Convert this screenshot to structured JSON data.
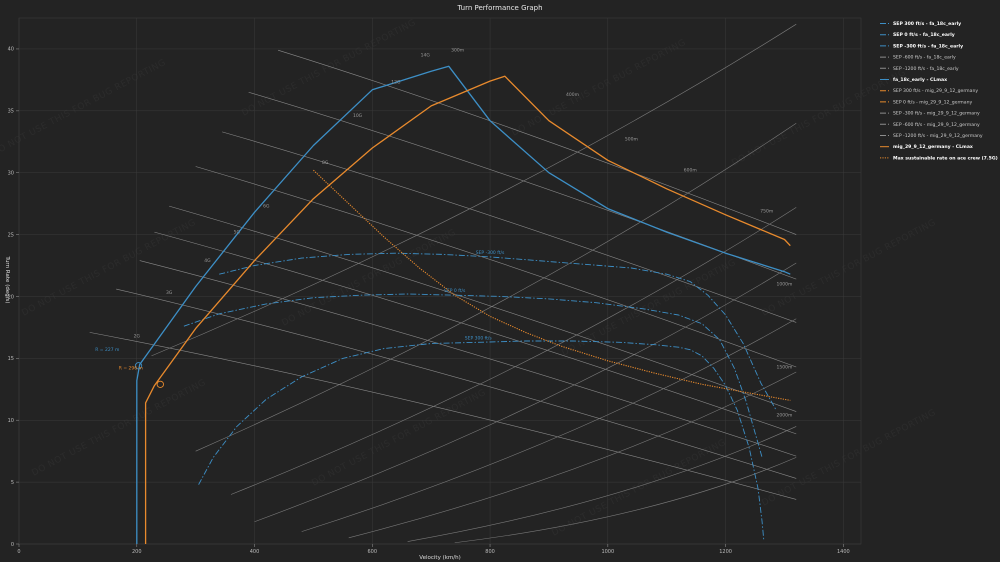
{
  "chart_data": {
    "type": "line",
    "title": "Turn Performance Graph",
    "xlabel": "Velocity (km/h)",
    "ylabel": "Turn Rate (deg/s)",
    "xlim": [
      0,
      1430
    ],
    "ylim": [
      0,
      42.5
    ],
    "xticks": [
      0,
      200,
      400,
      600,
      800,
      1000,
      1200,
      1400
    ],
    "yticks": [
      0,
      5,
      10,
      15,
      20,
      25,
      30,
      35,
      40
    ],
    "grid": true,
    "legend_position": "right",
    "watermark": "DO NOT USE THIS FOR BUG REPORTING",
    "series": [
      {
        "name": "SEP 300 ft/s - fa_18c_early",
        "color": "#3d8fc6",
        "style": "dashdot",
        "label": "SEP 300 ft/s",
        "x": [
          305,
          330,
          370,
          420,
          480,
          550,
          620,
          700,
          780,
          860,
          940,
          1020,
          1080,
          1120,
          1140,
          1160,
          1180,
          1200,
          1220,
          1240,
          1255,
          1262,
          1265
        ],
        "y": [
          4.8,
          7.0,
          9.5,
          11.7,
          13.5,
          15.0,
          15.8,
          16.2,
          16.3,
          16.4,
          16.4,
          16.3,
          16.1,
          15.9,
          15.7,
          15.2,
          14.2,
          12.8,
          10.8,
          7.8,
          4.5,
          1.8,
          0.3
        ]
      },
      {
        "name": "SEP 0 ft/s - fa_18c_early",
        "color": "#3d8fc6",
        "style": "dashdot",
        "label": "SEP 0 ft/s",
        "x": [
          280,
          340,
          420,
          500,
          580,
          660,
          740,
          820,
          900,
          980,
          1060,
          1120,
          1160,
          1190,
          1215,
          1235,
          1250,
          1262
        ],
        "y": [
          17.6,
          18.6,
          19.4,
          19.9,
          20.1,
          20.2,
          20.1,
          20.0,
          19.8,
          19.5,
          19.0,
          18.5,
          17.8,
          16.5,
          14.2,
          11.5,
          9.0,
          7.0
        ]
      },
      {
        "name": "SEP -300 ft/s - fa_18c_early",
        "color": "#3d8fc6",
        "style": "dashdot",
        "label": "SEP -300 ft/s",
        "x": [
          340,
          400,
          480,
          560,
          640,
          720,
          800,
          880,
          960,
          1040,
          1100,
          1140,
          1170,
          1200,
          1230,
          1260,
          1285
        ],
        "y": [
          21.8,
          22.5,
          23.1,
          23.4,
          23.5,
          23.4,
          23.2,
          22.9,
          22.6,
          22.3,
          21.8,
          21.2,
          20.1,
          18.5,
          16.2,
          13.0,
          10.9
        ]
      },
      {
        "name": "SEP -600 ft/s - fa_18c_early",
        "color": "#8d8d8d",
        "style": "dashdot"
      },
      {
        "name": "SEP -1200 ft/s - fa_18c_early",
        "color": "#8d8d8d",
        "style": "dashdot"
      },
      {
        "name": "fa_18c_early - CLmax",
        "color": "#3d8fc6",
        "style": "solid",
        "x": [
          200,
          200,
          205,
          300,
          400,
          500,
          600,
          700,
          730,
          800,
          900,
          1000,
          1100,
          1200,
          1300,
          1310
        ],
        "y": [
          0,
          13.2,
          14.5,
          20.8,
          26.8,
          32.2,
          36.7,
          38.2,
          38.6,
          34.2,
          30.0,
          27.1,
          25.2,
          23.5,
          22.0,
          21.8
        ]
      },
      {
        "name": "SEP 300 ft/s - mig_29_9_12_germany",
        "color": "#e88a2d",
        "style": "dashdot"
      },
      {
        "name": "SEP 0 ft/s - mig_29_9_12_germany",
        "color": "#e88a2d",
        "style": "dashdot"
      },
      {
        "name": "SEP -300 ft/s - mig_29_9_12_germany",
        "color": "#8d8d8d",
        "style": "dashdot"
      },
      {
        "name": "SEP -600 ft/s - mig_29_9_12_germany",
        "color": "#8d8d8d",
        "style": "dashdot"
      },
      {
        "name": "SEP -1200 ft/s - mig_29_9_12_germany",
        "color": "#8d8d8d",
        "style": "dashdot"
      },
      {
        "name": "mig_29_9_12_germany - CLmax",
        "color": "#e88a2d",
        "style": "solid",
        "x": [
          215,
          215,
          230,
          300,
          400,
          500,
          600,
          700,
          800,
          825,
          900,
          1000,
          1100,
          1200,
          1300,
          1310
        ],
        "y": [
          0,
          11.4,
          12.8,
          17.4,
          22.9,
          27.9,
          32.0,
          35.4,
          37.4,
          37.8,
          34.2,
          31.0,
          28.7,
          26.6,
          24.6,
          24.1
        ]
      },
      {
        "name": "Max sustainable rate on ace crew (7.5G)",
        "color": "#e88a2d",
        "style": "dotted",
        "x": [
          500,
          560,
          620,
          680,
          740,
          800,
          860,
          920,
          1000,
          1080,
          1160,
          1240,
          1310
        ],
        "y": [
          30.2,
          27.5,
          24.8,
          22.3,
          20.1,
          18.4,
          17.1,
          16.0,
          14.8,
          13.8,
          12.9,
          12.2,
          11.6
        ]
      }
    ],
    "g_lines": [
      {
        "label": "14G",
        "x": [
          440,
          1320
        ],
        "y": [
          39.9,
          25.0
        ]
      },
      {
        "label": "12G",
        "x": [
          390,
          1320
        ],
        "y": [
          36.5,
          21.4
        ]
      },
      {
        "label": "10G",
        "x": [
          345,
          1320
        ],
        "y": [
          33.3,
          17.9
        ]
      },
      {
        "label": "8G",
        "x": [
          300,
          1320
        ],
        "y": [
          30.5,
          14.3
        ]
      },
      {
        "label": "6G",
        "x": [
          255,
          1320
        ],
        "y": [
          27.3,
          10.7
        ]
      },
      {
        "label": "5G",
        "x": [
          230,
          1320
        ],
        "y": [
          25.2,
          8.9
        ]
      },
      {
        "label": "4G",
        "x": [
          205,
          1320
        ],
        "y": [
          22.9,
          7.1
        ]
      },
      {
        "label": "3G",
        "x": [
          165,
          1320
        ],
        "y": [
          20.6,
          5.3
        ]
      },
      {
        "label": "2G",
        "x": [
          120,
          1320
        ],
        "y": [
          17.1,
          3.6
        ]
      }
    ],
    "radius_lines": [
      {
        "label": "300m",
        "x": [
          225,
          1320
        ],
        "y": [
          15.2,
          42.0
        ]
      },
      {
        "label": "400m",
        "x": [
          300,
          1320
        ],
        "y": [
          7.5,
          34.0
        ]
      },
      {
        "label": "500m",
        "x": [
          360,
          1320
        ],
        "y": [
          4.0,
          27.2
        ]
      },
      {
        "label": "600m",
        "x": [
          400,
          1320
        ],
        "y": [
          1.8,
          22.7
        ]
      },
      {
        "label": "750m",
        "x": [
          480,
          1320
        ],
        "y": [
          1.0,
          18.2
        ]
      },
      {
        "label": "1000m",
        "x": [
          560,
          1320
        ],
        "y": [
          0.5,
          13.9
        ]
      },
      {
        "label": "1500m",
        "x": [
          660,
          1320
        ],
        "y": [
          0.2,
          9.5
        ]
      },
      {
        "label": "2000m",
        "x": [
          740,
          1320
        ],
        "y": [
          0.1,
          7.0
        ]
      }
    ],
    "annotations": [
      {
        "text": "R = 227 m",
        "x": 150,
        "y": 15.6,
        "color": "#3d8fc6"
      },
      {
        "text": "R = 296 m",
        "x": 190,
        "y": 14.1,
        "color": "#e88a2d"
      },
      {
        "text": "14G",
        "x": 690,
        "y": 39.4,
        "color": "#999"
      },
      {
        "text": "12G",
        "x": 640,
        "y": 37.2,
        "color": "#999"
      },
      {
        "text": "10G",
        "x": 575,
        "y": 34.5,
        "color": "#999"
      },
      {
        "text": "8G",
        "x": 520,
        "y": 30.7,
        "color": "#999"
      },
      {
        "text": "6G",
        "x": 420,
        "y": 27.2,
        "color": "#999"
      },
      {
        "text": "5G",
        "x": 370,
        "y": 25.1,
        "color": "#999"
      },
      {
        "text": "4G",
        "x": 320,
        "y": 22.8,
        "color": "#999"
      },
      {
        "text": "3G",
        "x": 255,
        "y": 20.2,
        "color": "#999"
      },
      {
        "text": "2G",
        "x": 200,
        "y": 16.7,
        "color": "#999"
      },
      {
        "text": "300m",
        "x": 745,
        "y": 39.8,
        "color": "#999"
      },
      {
        "text": "400m",
        "x": 940,
        "y": 36.2,
        "color": "#999"
      },
      {
        "text": "500m",
        "x": 1040,
        "y": 32.6,
        "color": "#999"
      },
      {
        "text": "600m",
        "x": 1140,
        "y": 30.1,
        "color": "#999"
      },
      {
        "text": "750m",
        "x": 1270,
        "y": 26.8,
        "color": "#999"
      },
      {
        "text": "1000m",
        "x": 1300,
        "y": 20.9,
        "color": "#999"
      },
      {
        "text": "1500m",
        "x": 1300,
        "y": 14.2,
        "color": "#999"
      },
      {
        "text": "2000m",
        "x": 1300,
        "y": 10.3,
        "color": "#999"
      }
    ]
  }
}
